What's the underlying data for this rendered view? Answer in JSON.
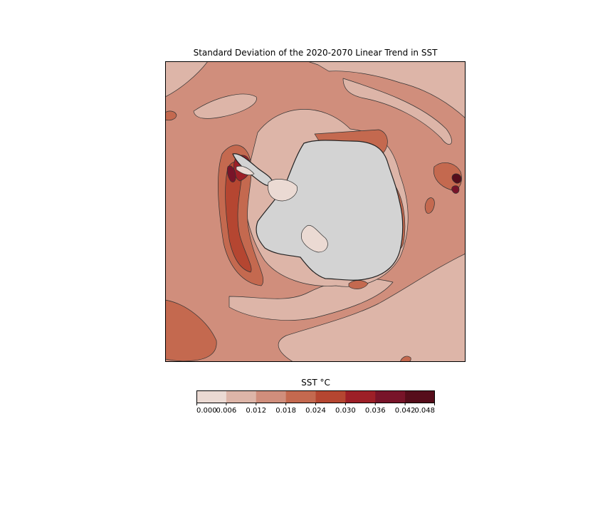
{
  "chart_data": {
    "type": "heatmap",
    "title": "Standard Deviation of the 2020-2070 Linear Trend in SST",
    "projection": "south-polar-stereographic",
    "colorbar": {
      "label": "SST °C",
      "levels": [
        0.0,
        0.006,
        0.012,
        0.018,
        0.024,
        0.03,
        0.036,
        0.042,
        0.048
      ],
      "tick_labels": [
        "0.000",
        "0.006",
        "0.012",
        "0.018",
        "0.024",
        "0.030",
        "0.036",
        "0.042",
        "0.048"
      ],
      "colors": [
        "#ebdad3",
        "#ddb5a8",
        "#d08e7c",
        "#c4694f",
        "#b54631",
        "#9d1f27",
        "#781429",
        "#560d1b"
      ]
    },
    "land_color": "#d3d3d3"
  }
}
